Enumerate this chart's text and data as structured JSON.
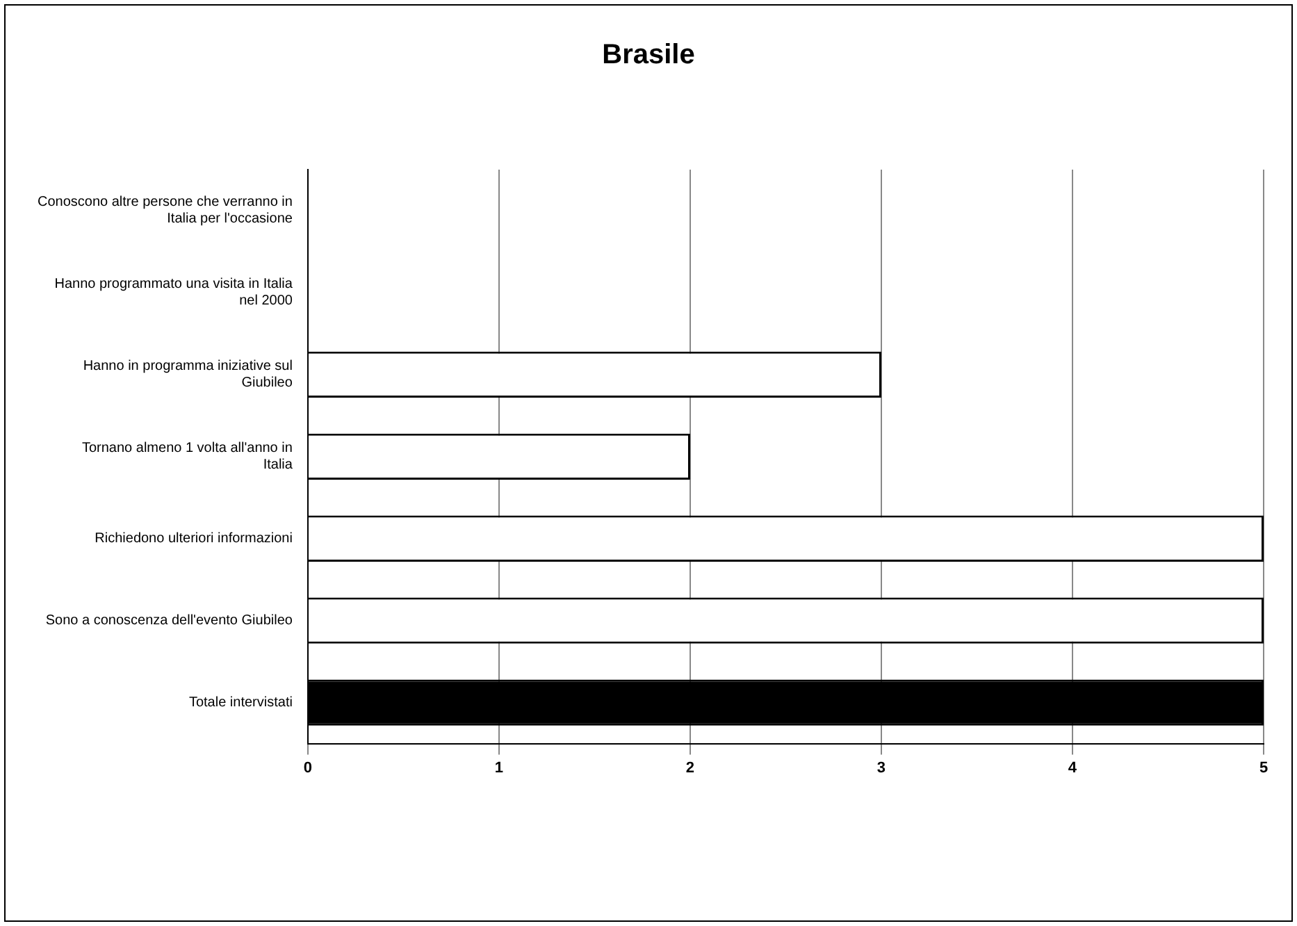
{
  "chart_data": {
    "type": "bar",
    "orientation": "horizontal",
    "title": "Brasile",
    "categories": [
      "Conoscono altre persone che verranno in Italia per l'occasione",
      "Hanno programmato una visita in Italia nel 2000",
      "Hanno in programma iniziative sul Giubileo",
      "Tornano almeno 1 volta all'anno in Italia",
      "Richiedono ulteriori informazioni",
      "Sono a conoscenza dell'evento Giubileo",
      "Totale intervistati"
    ],
    "values": [
      0,
      0,
      3,
      2,
      5,
      5,
      5
    ],
    "colors": [
      "#ffffff",
      "#ffffff",
      "#ffffff",
      "#ffffff",
      "#ffffff",
      "#ffffff",
      "#000000"
    ],
    "xlim": [
      0,
      5
    ],
    "xticks": [
      0,
      1,
      2,
      3,
      4,
      5
    ],
    "grid": "x",
    "legend": false
  }
}
